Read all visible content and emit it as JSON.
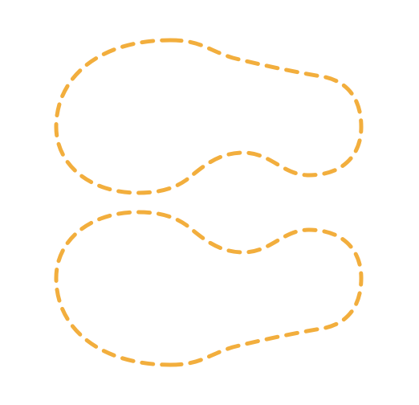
{
  "colors": {
    "background": "#ffffff",
    "stroke": "#F2AE3D"
  },
  "shapes": [
    {
      "name": "top-blob-outline",
      "style": "dashed"
    },
    {
      "name": "bottom-blob-outline",
      "style": "dashed"
    }
  ]
}
